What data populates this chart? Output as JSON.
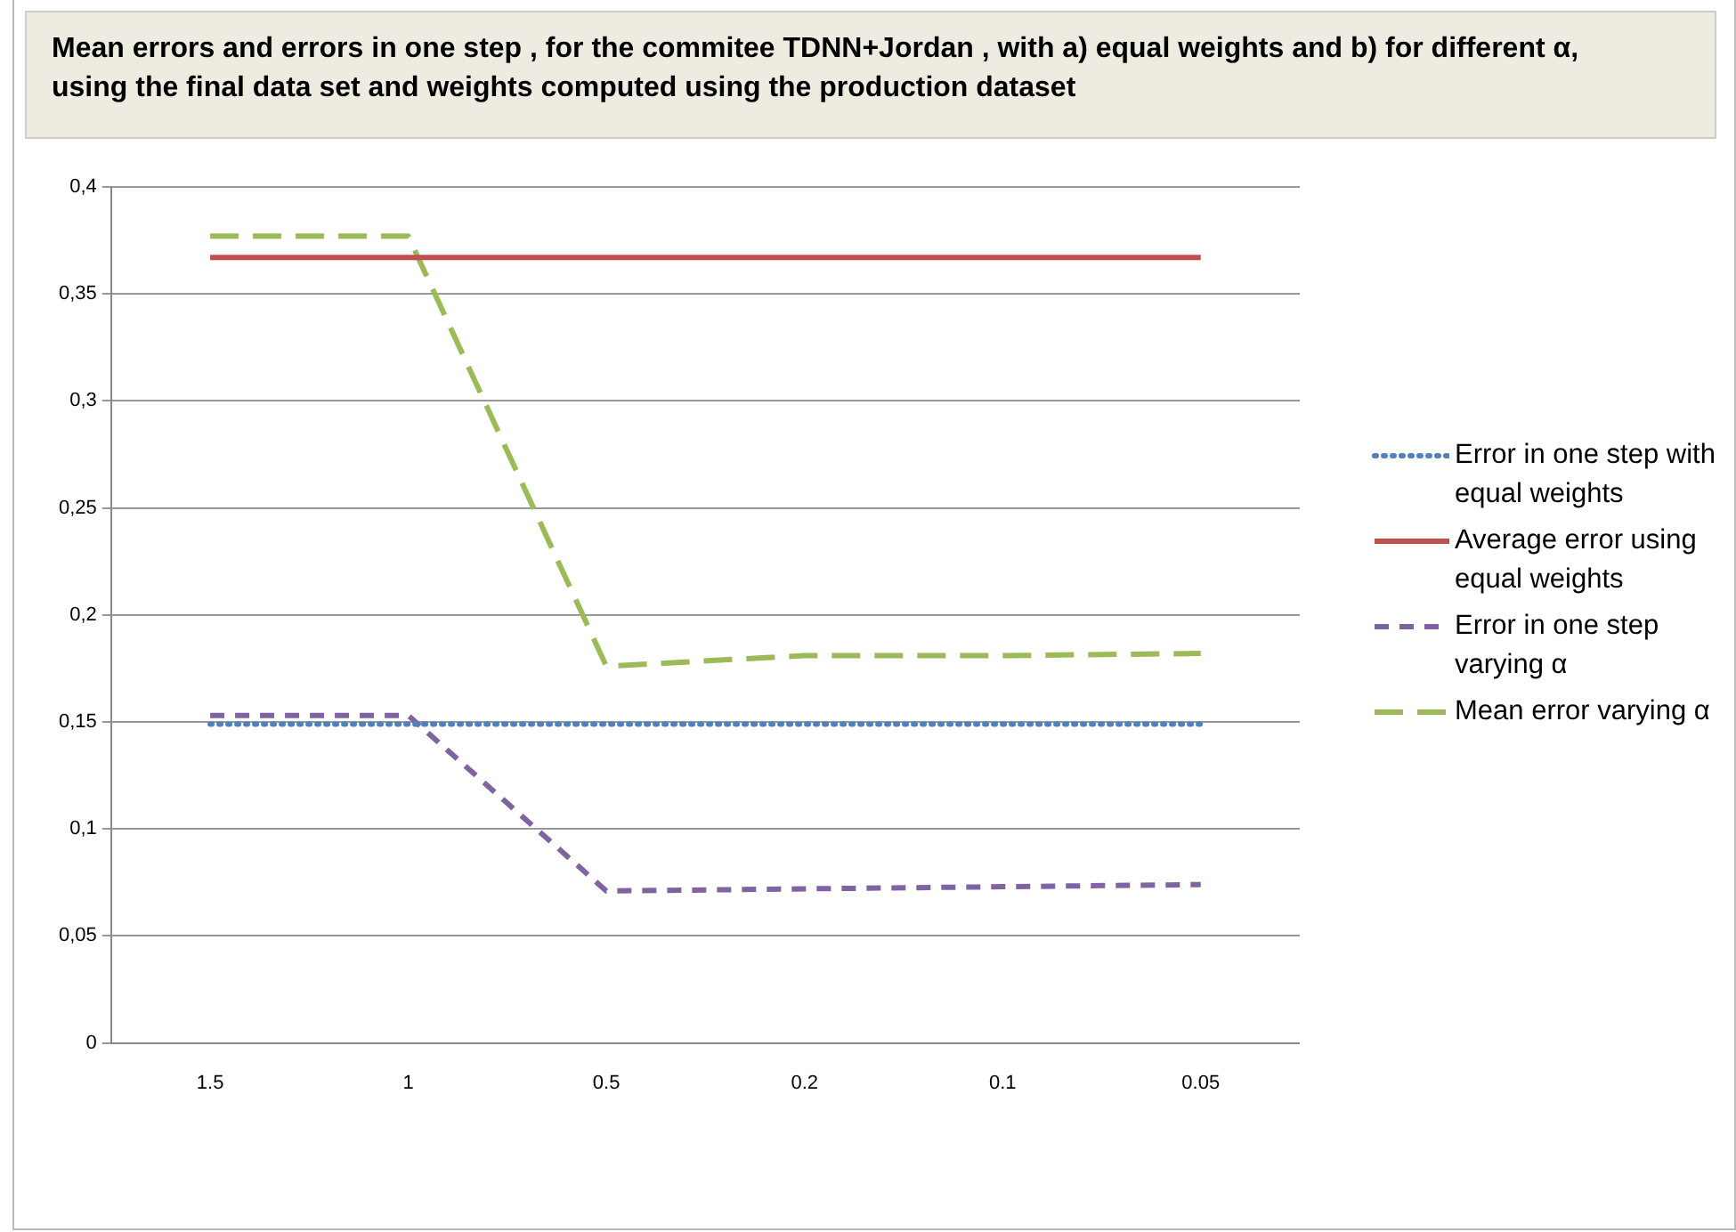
{
  "chart_data": {
    "type": "line",
    "title": "Mean errors and  errors  in one step , for the commitee  TDNN+Jordan , with a) equal weights and  b) for different  α, using the final data set and weights computed  using the production dataset",
    "categories": [
      "1.5",
      "1",
      "0.5",
      "0.2",
      "0.1",
      "0.05"
    ],
    "series": [
      {
        "name": "Error in one step with equal weights",
        "color": "#4f81bd",
        "line_style": "dotted",
        "values": [
          0.149,
          0.149,
          0.149,
          0.149,
          0.149,
          0.149
        ]
      },
      {
        "name": "Average error using equal weights",
        "color": "#c0504d",
        "line_style": "solid",
        "values": [
          0.367,
          0.367,
          0.367,
          0.367,
          0.367,
          0.367
        ]
      },
      {
        "name": "Error in one step varying  α",
        "color": "#8064a2",
        "line_style": "dashed",
        "values": [
          0.153,
          0.153,
          0.071,
          0.072,
          0.073,
          0.074
        ]
      },
      {
        "name": "Mean error varying α",
        "color": "#9bbb59",
        "line_style": "longdash",
        "values": [
          0.377,
          0.377,
          0.176,
          0.181,
          0.181,
          0.182
        ]
      }
    ],
    "ylim": [
      0,
      0.4
    ],
    "yticks": [
      {
        "value": 0,
        "label": "0"
      },
      {
        "value": 0.05,
        "label": "0,05"
      },
      {
        "value": 0.1,
        "label": "0,1"
      },
      {
        "value": 0.15,
        "label": "0,15"
      },
      {
        "value": 0.2,
        "label": "0,2"
      },
      {
        "value": 0.25,
        "label": "0,25"
      },
      {
        "value": 0.3,
        "label": "0,3"
      },
      {
        "value": 0.35,
        "label": "0,35"
      },
      {
        "value": 0.4,
        "label": "0,4"
      }
    ],
    "grid": "y",
    "legend": "right",
    "marker": "none"
  }
}
